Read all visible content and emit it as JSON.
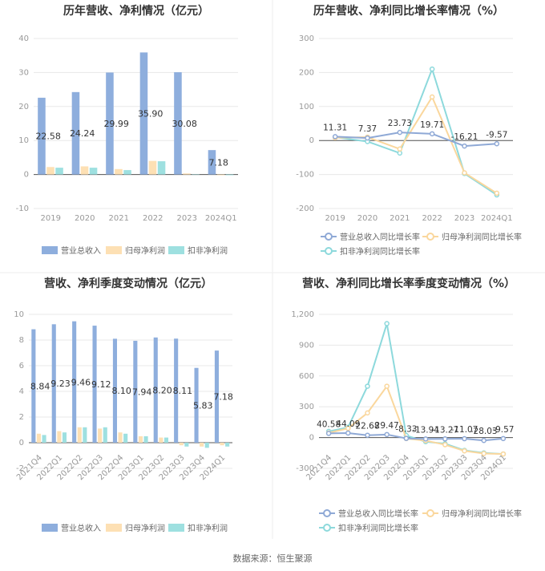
{
  "source_text": "数据来源：恒生聚源",
  "colors": {
    "revenue": "#8eaedd",
    "parent_profit": "#fde0b4",
    "deducted_profit": "#9ee0e0",
    "rev_line": "#8fa9d6",
    "np_line": "#fad79d",
    "dp_line": "#8dd9dc",
    "axis_text": "#999999",
    "grid": "#e8e8e8",
    "title": "#333333"
  },
  "chart_data": [
    {
      "id": "annual-bar",
      "type": "bar",
      "title": "历年营收、净利情况（亿元）",
      "categories": [
        "2019",
        "2020",
        "2021",
        "2022",
        "2023",
        "2024Q1"
      ],
      "series": [
        {
          "name": "营业总收入",
          "values": [
            22.58,
            24.24,
            29.99,
            35.9,
            30.08,
            7.18
          ]
        },
        {
          "name": "归母净利润",
          "values": [
            2.2,
            2.4,
            1.6,
            4.0,
            0.3,
            -0.2
          ]
        },
        {
          "name": "扣非净利润",
          "values": [
            2.0,
            2.0,
            1.3,
            3.9,
            -0.1,
            -0.2
          ]
        }
      ],
      "data_labels": [
        "22.58",
        "24.24",
        "29.99",
        "35.90",
        "30.08",
        "7.18"
      ],
      "yticks": [
        "40",
        "30",
        "20",
        "10",
        "0",
        "-10"
      ],
      "ylim": [
        -10,
        40
      ],
      "legend_position": "bottom"
    },
    {
      "id": "annual-line",
      "type": "line",
      "title": "历年营收、净利同比增长率情况（%）",
      "categories": [
        "2019",
        "2020",
        "2021",
        "2022",
        "2023",
        "2024Q1"
      ],
      "series": [
        {
          "name": "营业总收入同比增长率",
          "values": [
            11.31,
            7.37,
            23.73,
            19.71,
            -16.21,
            -9.57
          ]
        },
        {
          "name": "归母净利润同比增长率",
          "values": [
            8,
            10,
            -25,
            128,
            -95,
            -155
          ]
        },
        {
          "name": "扣非净利润同比增长率",
          "values": [
            10,
            -3,
            -37,
            210,
            -97,
            -160
          ]
        }
      ],
      "data_labels": [
        "11.31",
        "7.37",
        "23.73",
        "19.71",
        "-16.21",
        "-9.57"
      ],
      "yticks": [
        "300",
        "200",
        "100",
        "0",
        "-100",
        "-200"
      ],
      "ylim": [
        -200,
        300
      ],
      "legend_position": "bottom"
    },
    {
      "id": "quarter-bar",
      "type": "bar",
      "title": "营收、净利季度变动情况（亿元）",
      "categories": [
        "2021Q4",
        "2022Q1",
        "2022Q2",
        "2022Q3",
        "2022Q4",
        "2023Q1",
        "2023Q2",
        "2023Q3",
        "2023Q4",
        "2024Q1"
      ],
      "series": [
        {
          "name": "营业总收入",
          "values": [
            8.84,
            9.23,
            9.46,
            9.12,
            8.1,
            7.94,
            8.2,
            8.11,
            5.83,
            7.18
          ]
        },
        {
          "name": "归母净利润",
          "values": [
            0.7,
            0.9,
            1.2,
            1.1,
            0.8,
            0.5,
            0.4,
            -0.2,
            -0.3,
            -0.2
          ]
        },
        {
          "name": "扣非净利润",
          "values": [
            0.6,
            0.8,
            1.2,
            1.2,
            0.7,
            0.5,
            0.4,
            -0.3,
            -0.4,
            -0.3
          ]
        }
      ],
      "data_labels": [
        "8.84",
        "9.23",
        "9.46",
        "9.12",
        "8.10",
        "7.94",
        "8.20",
        "8.11",
        "5.83",
        "7.18"
      ],
      "yticks": [
        "10",
        "8",
        "6",
        "4",
        "2",
        "0",
        "-2"
      ],
      "ylim": [
        -2,
        10
      ],
      "legend_position": "bottom"
    },
    {
      "id": "quarter-line",
      "type": "line",
      "title": "营收、净利同比增长率季度变动情况（%）",
      "categories": [
        "2021Q4",
        "2022Q1",
        "2022Q2",
        "2022Q3",
        "2022Q4",
        "2023Q1",
        "2023Q2",
        "2023Q3",
        "2023Q4",
        "2024Q1"
      ],
      "series": [
        {
          "name": "营业总收入同比增长率",
          "values": [
            40.58,
            44.09,
            22.68,
            29.47,
            -8.33,
            -13.94,
            -13.27,
            -11.07,
            -28.03,
            -9.57
          ]
        },
        {
          "name": "归母净利润同比增长率",
          "values": [
            45,
            90,
            240,
            500,
            -10,
            -30,
            -70,
            -130,
            -155,
            -160
          ]
        },
        {
          "name": "扣非净利润同比增长率",
          "values": [
            60,
            100,
            500,
            1110,
            20,
            -40,
            -60,
            -125,
            -150,
            -160
          ]
        }
      ],
      "data_labels": [
        "40.58",
        "44.09",
        "22.68",
        "29.47",
        "-8.33",
        "-13.94",
        "-13.27",
        "-11.07",
        "-28.03",
        "-9.57"
      ],
      "yticks": [
        "1,200",
        "900",
        "600",
        "300",
        "0",
        "-300"
      ],
      "ylim": [
        -300,
        1200
      ],
      "legend_position": "bottom"
    }
  ]
}
